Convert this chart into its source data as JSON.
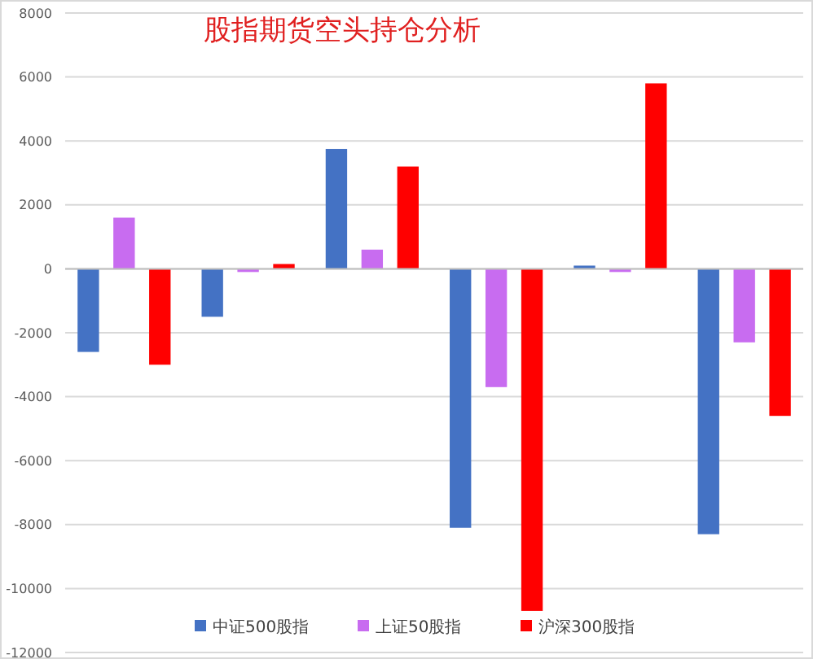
{
  "chart_data": {
    "type": "bar",
    "title": "股指期货空头持仓分析",
    "categories": [
      null,
      null,
      null,
      null,
      null,
      null
    ],
    "series": [
      {
        "name": "中证500股指",
        "color": "#4472c4",
        "values": [
          -2600,
          -1500,
          3750,
          -8100,
          100,
          -8300
        ]
      },
      {
        "name": "上证50股指",
        "color": "#c86cf0",
        "values": [
          1600,
          -100,
          600,
          -3700,
          -100,
          -2300
        ]
      },
      {
        "name": "沪深300股指",
        "color": "#ff0000",
        "values": [
          -3000,
          150,
          3200,
          -10700,
          5800,
          -4600
        ]
      }
    ],
    "ylim": [
      -12000,
      8000
    ],
    "yticks": [
      -12000,
      -10000,
      -8000,
      -6000,
      -4000,
      -2000,
      0,
      2000,
      4000,
      6000,
      8000
    ],
    "grid": "y",
    "legend": "bottom"
  }
}
